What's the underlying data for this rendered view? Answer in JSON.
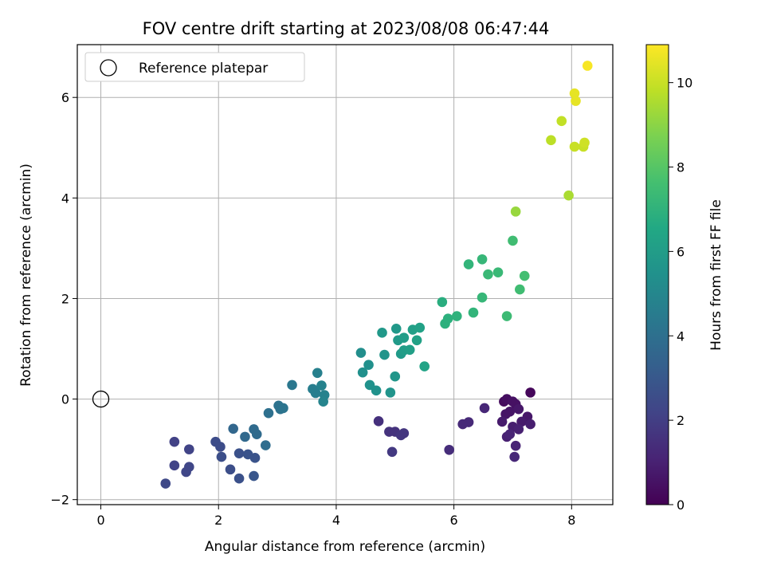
{
  "chart_data": {
    "type": "scatter",
    "title": "FOV centre drift starting at 2023/08/08 06:47:44",
    "xlabel": "Angular distance from reference (arcmin)",
    "ylabel": "Rotation from reference (arcmin)",
    "xlim": [
      -0.4,
      8.7
    ],
    "ylim": [
      -2.1,
      7.05
    ],
    "xticks": [
      0,
      2,
      4,
      6,
      8
    ],
    "yticks": [
      -2,
      0,
      2,
      4,
      6
    ],
    "grid": true,
    "legend": {
      "location": "upper-left",
      "entries": [
        "Reference platepar"
      ]
    },
    "reference_point": {
      "x": 0,
      "y": 0
    },
    "colorbar": {
      "label": "Hours from first FF file",
      "colormap": "viridis",
      "range": [
        0,
        10.9
      ],
      "ticks": [
        0,
        2,
        4,
        6,
        8,
        10
      ]
    },
    "series": [
      {
        "points": [
          {
            "x": 7.3,
            "y": 0.13,
            "c": 0.2
          },
          {
            "x": 6.85,
            "y": -0.05,
            "c": 0.3
          },
          {
            "x": 6.9,
            "y": 0.0,
            "c": 0.4
          },
          {
            "x": 7.0,
            "y": -0.05,
            "c": 0.5
          },
          {
            "x": 7.05,
            "y": -0.1,
            "c": 0.5
          },
          {
            "x": 6.95,
            "y": -0.25,
            "c": 0.6
          },
          {
            "x": 6.88,
            "y": -0.3,
            "c": 0.6
          },
          {
            "x": 7.1,
            "y": -0.2,
            "c": 0.7
          },
          {
            "x": 7.25,
            "y": -0.35,
            "c": 0.7
          },
          {
            "x": 6.82,
            "y": -0.45,
            "c": 0.8
          },
          {
            "x": 7.15,
            "y": -0.45,
            "c": 0.8
          },
          {
            "x": 7.3,
            "y": -0.5,
            "c": 0.9
          },
          {
            "x": 7.0,
            "y": -0.55,
            "c": 0.9
          },
          {
            "x": 7.1,
            "y": -0.6,
            "c": 1.0
          },
          {
            "x": 6.9,
            "y": -0.75,
            "c": 1.0
          },
          {
            "x": 6.95,
            "y": -0.7,
            "c": 1.1
          },
          {
            "x": 7.05,
            "y": -0.93,
            "c": 1.1
          },
          {
            "x": 7.03,
            "y": -1.15,
            "c": 1.2
          },
          {
            "x": 6.52,
            "y": -0.18,
            "c": 1.2
          },
          {
            "x": 6.25,
            "y": -0.46,
            "c": 1.3
          },
          {
            "x": 6.15,
            "y": -0.5,
            "c": 1.3
          },
          {
            "x": 5.92,
            "y": -1.01,
            "c": 1.4
          },
          {
            "x": 4.72,
            "y": -0.44,
            "c": 1.5
          },
          {
            "x": 4.9,
            "y": -0.65,
            "c": 1.6
          },
          {
            "x": 5.0,
            "y": -0.65,
            "c": 1.6
          },
          {
            "x": 5.1,
            "y": -0.72,
            "c": 1.7
          },
          {
            "x": 5.15,
            "y": -0.68,
            "c": 1.7
          },
          {
            "x": 4.95,
            "y": -1.05,
            "c": 1.8
          },
          {
            "x": 1.25,
            "y": -0.85,
            "c": 2.1
          },
          {
            "x": 1.5,
            "y": -1.0,
            "c": 2.2
          },
          {
            "x": 1.25,
            "y": -1.32,
            "c": 2.2
          },
          {
            "x": 1.5,
            "y": -1.35,
            "c": 2.3
          },
          {
            "x": 1.45,
            "y": -1.45,
            "c": 2.3
          },
          {
            "x": 1.1,
            "y": -1.68,
            "c": 2.4
          },
          {
            "x": 1.95,
            "y": -0.85,
            "c": 2.5
          },
          {
            "x": 2.03,
            "y": -0.95,
            "c": 2.5
          },
          {
            "x": 2.05,
            "y": -1.15,
            "c": 2.6
          },
          {
            "x": 2.2,
            "y": -1.4,
            "c": 2.6
          },
          {
            "x": 2.35,
            "y": -1.58,
            "c": 2.7
          },
          {
            "x": 2.35,
            "y": -1.08,
            "c": 2.7
          },
          {
            "x": 2.5,
            "y": -1.1,
            "c": 2.8
          },
          {
            "x": 2.62,
            "y": -1.17,
            "c": 2.8
          },
          {
            "x": 2.6,
            "y": -1.53,
            "c": 2.9
          },
          {
            "x": 2.25,
            "y": -0.59,
            "c": 3.6
          },
          {
            "x": 2.45,
            "y": -0.75,
            "c": 3.7
          },
          {
            "x": 2.6,
            "y": -0.6,
            "c": 3.8
          },
          {
            "x": 2.65,
            "y": -0.7,
            "c": 3.8
          },
          {
            "x": 2.8,
            "y": -0.92,
            "c": 3.9
          },
          {
            "x": 2.85,
            "y": -0.28,
            "c": 4.0
          },
          {
            "x": 3.02,
            "y": -0.13,
            "c": 4.1
          },
          {
            "x": 3.05,
            "y": -0.2,
            "c": 4.1
          },
          {
            "x": 3.1,
            "y": -0.18,
            "c": 4.2
          },
          {
            "x": 3.25,
            "y": 0.28,
            "c": 4.3
          },
          {
            "x": 3.6,
            "y": 0.2,
            "c": 4.6
          },
          {
            "x": 3.65,
            "y": 0.12,
            "c": 4.6
          },
          {
            "x": 3.68,
            "y": 0.52,
            "c": 4.7
          },
          {
            "x": 3.75,
            "y": 0.27,
            "c": 4.8
          },
          {
            "x": 3.8,
            "y": 0.08,
            "c": 4.8
          },
          {
            "x": 3.78,
            "y": -0.05,
            "c": 4.9
          },
          {
            "x": 4.42,
            "y": 0.92,
            "c": 5.3
          },
          {
            "x": 4.45,
            "y": 0.53,
            "c": 5.4
          },
          {
            "x": 4.55,
            "y": 0.68,
            "c": 5.4
          },
          {
            "x": 4.57,
            "y": 0.28,
            "c": 5.5
          },
          {
            "x": 4.68,
            "y": 0.17,
            "c": 5.5
          },
          {
            "x": 4.82,
            "y": 0.88,
            "c": 5.6
          },
          {
            "x": 4.92,
            "y": 0.13,
            "c": 5.6
          },
          {
            "x": 5.0,
            "y": 0.45,
            "c": 5.7
          },
          {
            "x": 4.78,
            "y": 1.32,
            "c": 5.8
          },
          {
            "x": 5.02,
            "y": 1.4,
            "c": 5.8
          },
          {
            "x": 5.05,
            "y": 1.17,
            "c": 5.9
          },
          {
            "x": 5.1,
            "y": 0.9,
            "c": 5.9
          },
          {
            "x": 5.15,
            "y": 1.22,
            "c": 6.0
          },
          {
            "x": 5.15,
            "y": 0.97,
            "c": 6.0
          },
          {
            "x": 5.25,
            "y": 0.98,
            "c": 6.1
          },
          {
            "x": 5.3,
            "y": 1.38,
            "c": 6.1
          },
          {
            "x": 5.37,
            "y": 1.17,
            "c": 6.2
          },
          {
            "x": 5.42,
            "y": 1.42,
            "c": 6.2
          },
          {
            "x": 5.5,
            "y": 0.65,
            "c": 6.3
          },
          {
            "x": 5.8,
            "y": 1.93,
            "c": 6.8
          },
          {
            "x": 5.85,
            "y": 1.5,
            "c": 6.9
          },
          {
            "x": 5.9,
            "y": 1.6,
            "c": 6.9
          },
          {
            "x": 6.05,
            "y": 1.65,
            "c": 7.0
          },
          {
            "x": 6.25,
            "y": 2.68,
            "c": 7.1
          },
          {
            "x": 6.33,
            "y": 1.72,
            "c": 7.1
          },
          {
            "x": 6.48,
            "y": 2.78,
            "c": 7.2
          },
          {
            "x": 6.48,
            "y": 2.02,
            "c": 7.2
          },
          {
            "x": 6.58,
            "y": 2.48,
            "c": 7.3
          },
          {
            "x": 6.75,
            "y": 2.52,
            "c": 7.3
          },
          {
            "x": 6.9,
            "y": 1.65,
            "c": 7.4
          },
          {
            "x": 7.0,
            "y": 3.15,
            "c": 7.5
          },
          {
            "x": 7.12,
            "y": 2.18,
            "c": 7.5
          },
          {
            "x": 7.2,
            "y": 2.45,
            "c": 7.6
          },
          {
            "x": 7.05,
            "y": 3.73,
            "c": 9.2
          },
          {
            "x": 7.95,
            "y": 4.05,
            "c": 9.5
          },
          {
            "x": 7.65,
            "y": 5.15,
            "c": 9.8
          },
          {
            "x": 7.83,
            "y": 5.53,
            "c": 9.9
          },
          {
            "x": 8.05,
            "y": 5.02,
            "c": 10.0
          },
          {
            "x": 8.2,
            "y": 5.02,
            "c": 10.0
          },
          {
            "x": 8.22,
            "y": 5.1,
            "c": 10.1
          },
          {
            "x": 8.05,
            "y": 6.08,
            "c": 10.5
          },
          {
            "x": 8.07,
            "y": 5.93,
            "c": 10.5
          },
          {
            "x": 8.27,
            "y": 6.63,
            "c": 10.8
          }
        ]
      }
    ]
  }
}
